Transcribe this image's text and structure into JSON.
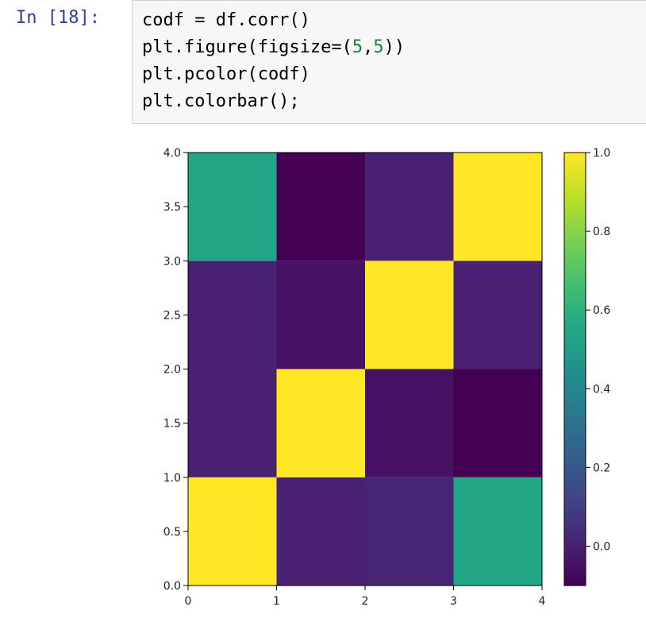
{
  "cell": {
    "prompt": "In [18]:",
    "code_lines": [
      [
        {
          "t": "codf = df.corr()"
        }
      ],
      [
        {
          "t": "plt.figure(figsize=("
        },
        {
          "t": "5",
          "num": true
        },
        {
          "t": ","
        },
        {
          "t": "5",
          "num": true
        },
        {
          "t": "))"
        }
      ],
      [
        {
          "t": "plt.pcolor(codf)"
        }
      ],
      [
        {
          "t": "plt.colorbar();"
        }
      ]
    ]
  },
  "chart_data": {
    "type": "heatmap",
    "title": "",
    "xlabel": "",
    "ylabel": "",
    "x_edges": [
      0,
      1,
      2,
      3,
      4
    ],
    "y_edges": [
      0,
      1,
      2,
      3,
      4
    ],
    "x_ticks": [
      "0",
      "1",
      "2",
      "3",
      "4"
    ],
    "y_ticks": [
      "0.0",
      "0.5",
      "1.0",
      "1.5",
      "2.0",
      "2.5",
      "3.0",
      "3.5",
      "4.0"
    ],
    "values": [
      [
        1.0,
        0.0,
        0.01,
        0.55
      ],
      [
        0.0,
        1.0,
        -0.05,
        -0.1
      ],
      [
        0.0,
        -0.05,
        1.0,
        0.0
      ],
      [
        0.55,
        -0.1,
        0.0,
        1.0
      ]
    ],
    "colormap": "viridis",
    "colorbar": {
      "range": [
        -0.1,
        1.0
      ],
      "ticks": [
        "0.0",
        "0.2",
        "0.4",
        "0.6",
        "0.8",
        "1.0"
      ],
      "tick_values": [
        0.0,
        0.2,
        0.4,
        0.6,
        0.8,
        1.0
      ]
    }
  }
}
